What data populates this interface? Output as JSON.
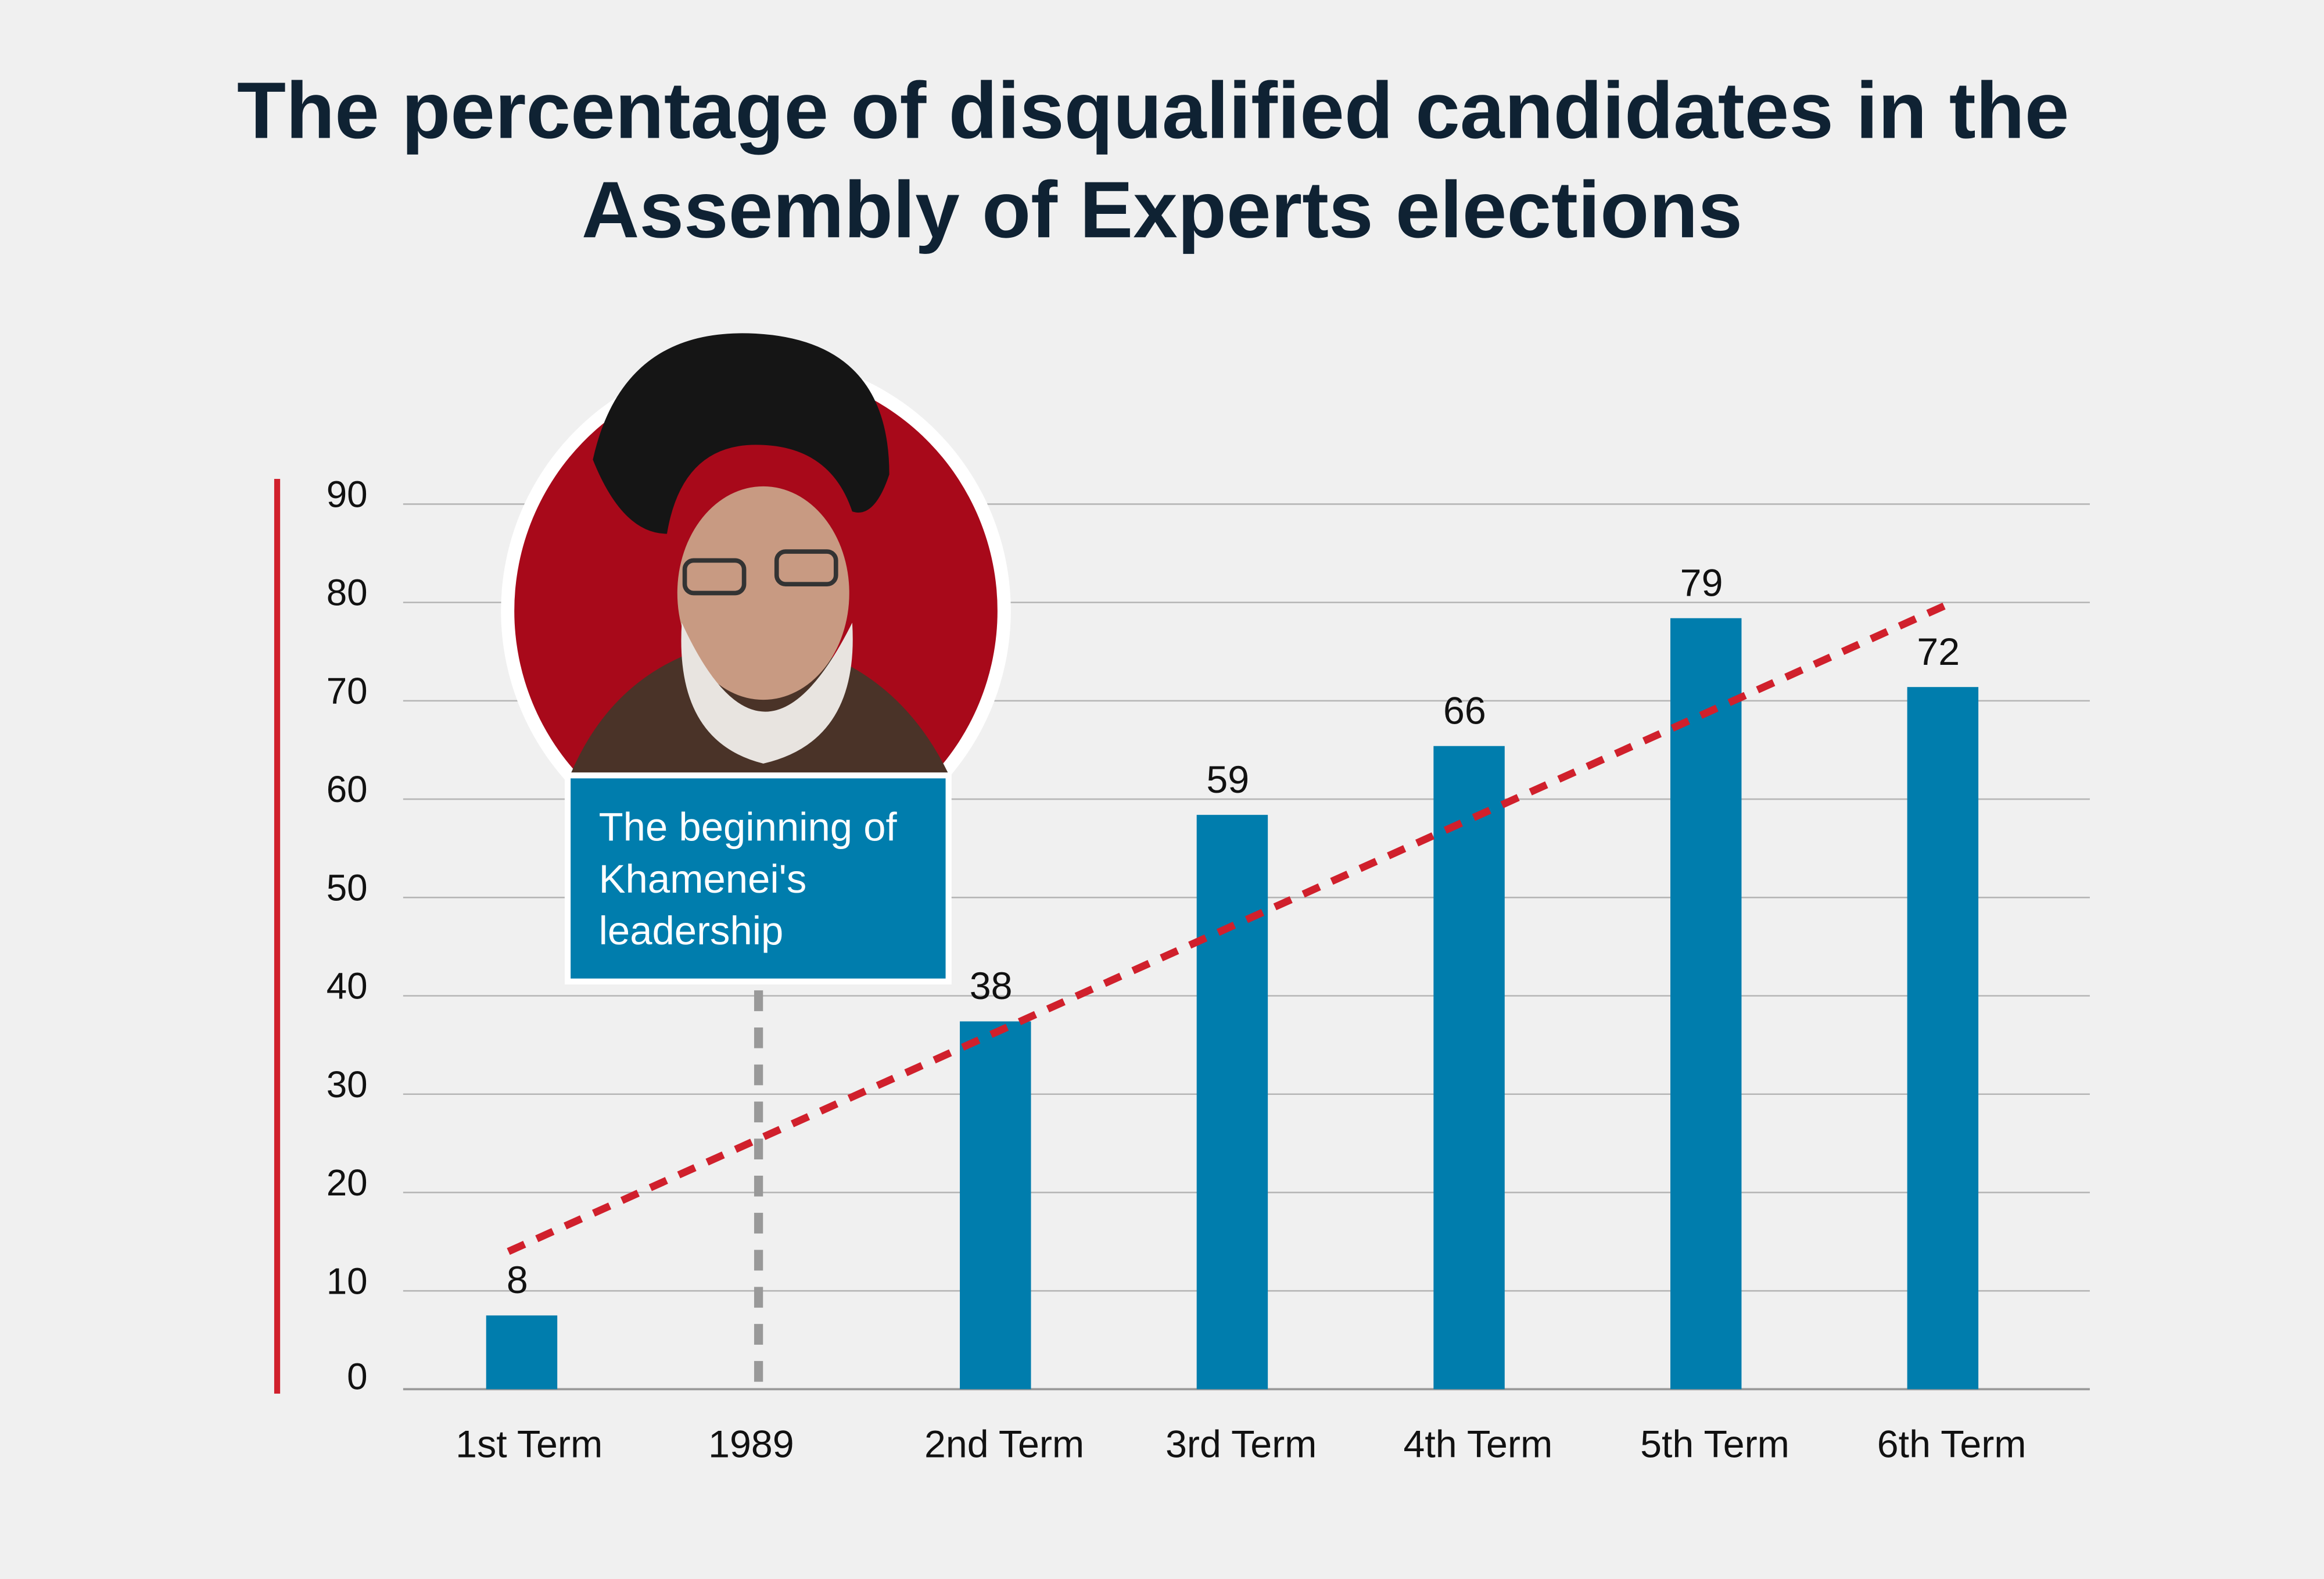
{
  "chart_data": {
    "type": "bar",
    "title": [
      "The percentage of disqualified candidates in the",
      "Assembly of Experts elections"
    ],
    "categories": [
      "1st Term",
      "1989",
      "2nd Term",
      "3rd Term",
      "4th Term",
      "5th Term",
      "6th Term"
    ],
    "values": [
      8,
      null,
      38,
      59,
      66,
      79,
      72
    ],
    "data_labels": [
      "8",
      "",
      "38",
      "59",
      "66",
      "79",
      "72"
    ],
    "yticks": [
      "0",
      "10",
      "20",
      "30",
      "40",
      "50",
      "60",
      "70",
      "80",
      "90"
    ],
    "ylim": [
      0,
      90
    ],
    "grid": true,
    "trendline": {
      "style": "dashed",
      "start": 14,
      "end": 80
    },
    "marker": {
      "category": "1989",
      "style": "dashed-vertical",
      "label": [
        "The beginning of",
        "Khamenei's",
        "leadership"
      ]
    },
    "colors": {
      "bar": "#007dad",
      "trend": "#d0202c",
      "axis_accent": "#d0202c",
      "marker": "#999999",
      "callout": "#007dad",
      "photo_bg": "#a8091a"
    }
  }
}
